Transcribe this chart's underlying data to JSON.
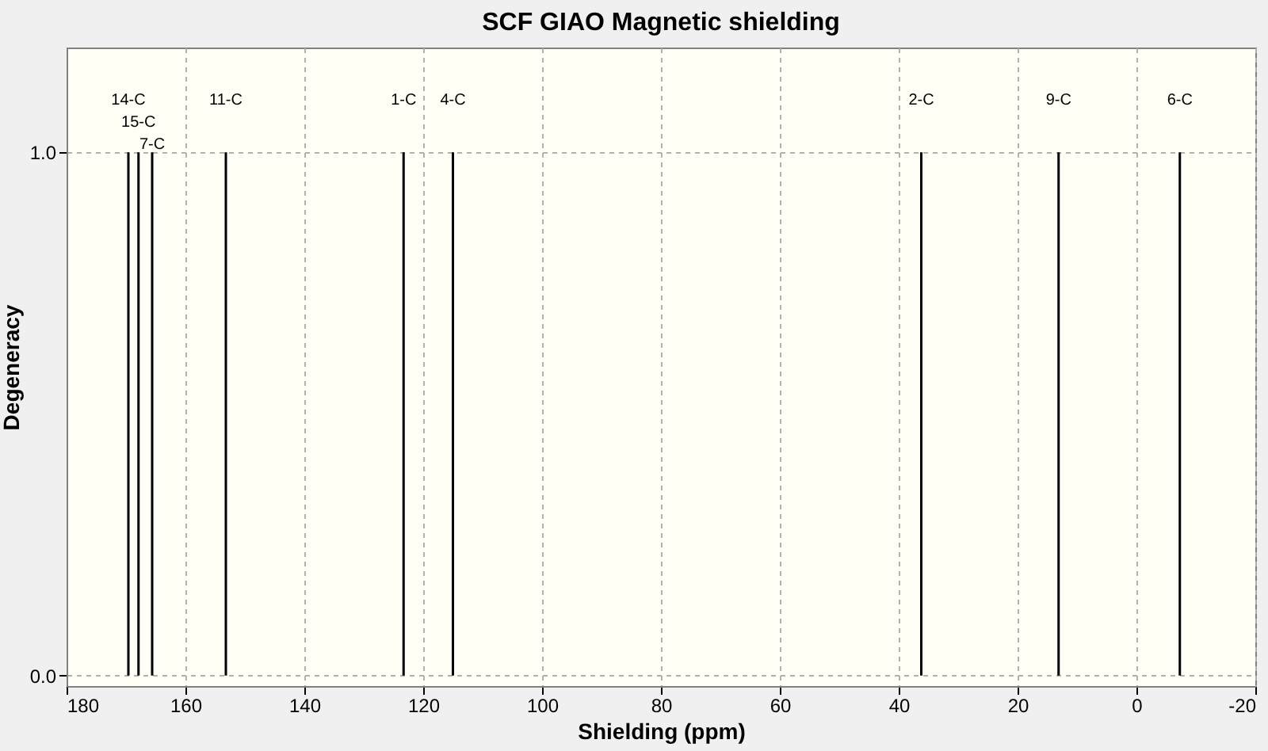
{
  "chart_data": {
    "type": "bar",
    "title": "SCF GIAO Magnetic shielding",
    "xlabel": "Shielding (ppm)",
    "ylabel": "Degeneracy",
    "x": [
      169.6,
      167.9,
      165.6,
      153.2,
      123.3,
      115.0,
      36.2,
      13.1,
      -7.3
    ],
    "series": [
      {
        "color": "#000000",
        "values": [
          1,
          1,
          1,
          1,
          1,
          1,
          1,
          1,
          1
        ]
      }
    ],
    "annotations": [
      {
        "text": "14-C",
        "x": 169.6,
        "y": 1
      },
      {
        "text": "15-C",
        "x": 167.9,
        "y": 1
      },
      {
        "text": "7-C",
        "x": 165.6,
        "y": 1
      },
      {
        "text": "11-C",
        "x": 153.2,
        "y": 1
      },
      {
        "text": "1-C",
        "x": 123.3,
        "y": 1
      },
      {
        "text": "4-C",
        "x": 115.0,
        "y": 1
      },
      {
        "text": "2-C",
        "x": 36.2,
        "y": 1
      },
      {
        "text": "9-C",
        "x": 13.1,
        "y": 1
      },
      {
        "text": "6-C",
        "x": -7.3,
        "y": 1
      }
    ],
    "xlim": [
      180,
      -20
    ],
    "xticks": [
      180,
      160,
      140,
      120,
      100,
      80,
      60,
      40,
      20,
      0,
      -20
    ],
    "ylim": [
      -0.02,
      1.2
    ],
    "yticks": [
      {
        "value": 0,
        "label": "0.0"
      },
      {
        "value": 1,
        "label": "1.0"
      }
    ],
    "grid": true
  }
}
